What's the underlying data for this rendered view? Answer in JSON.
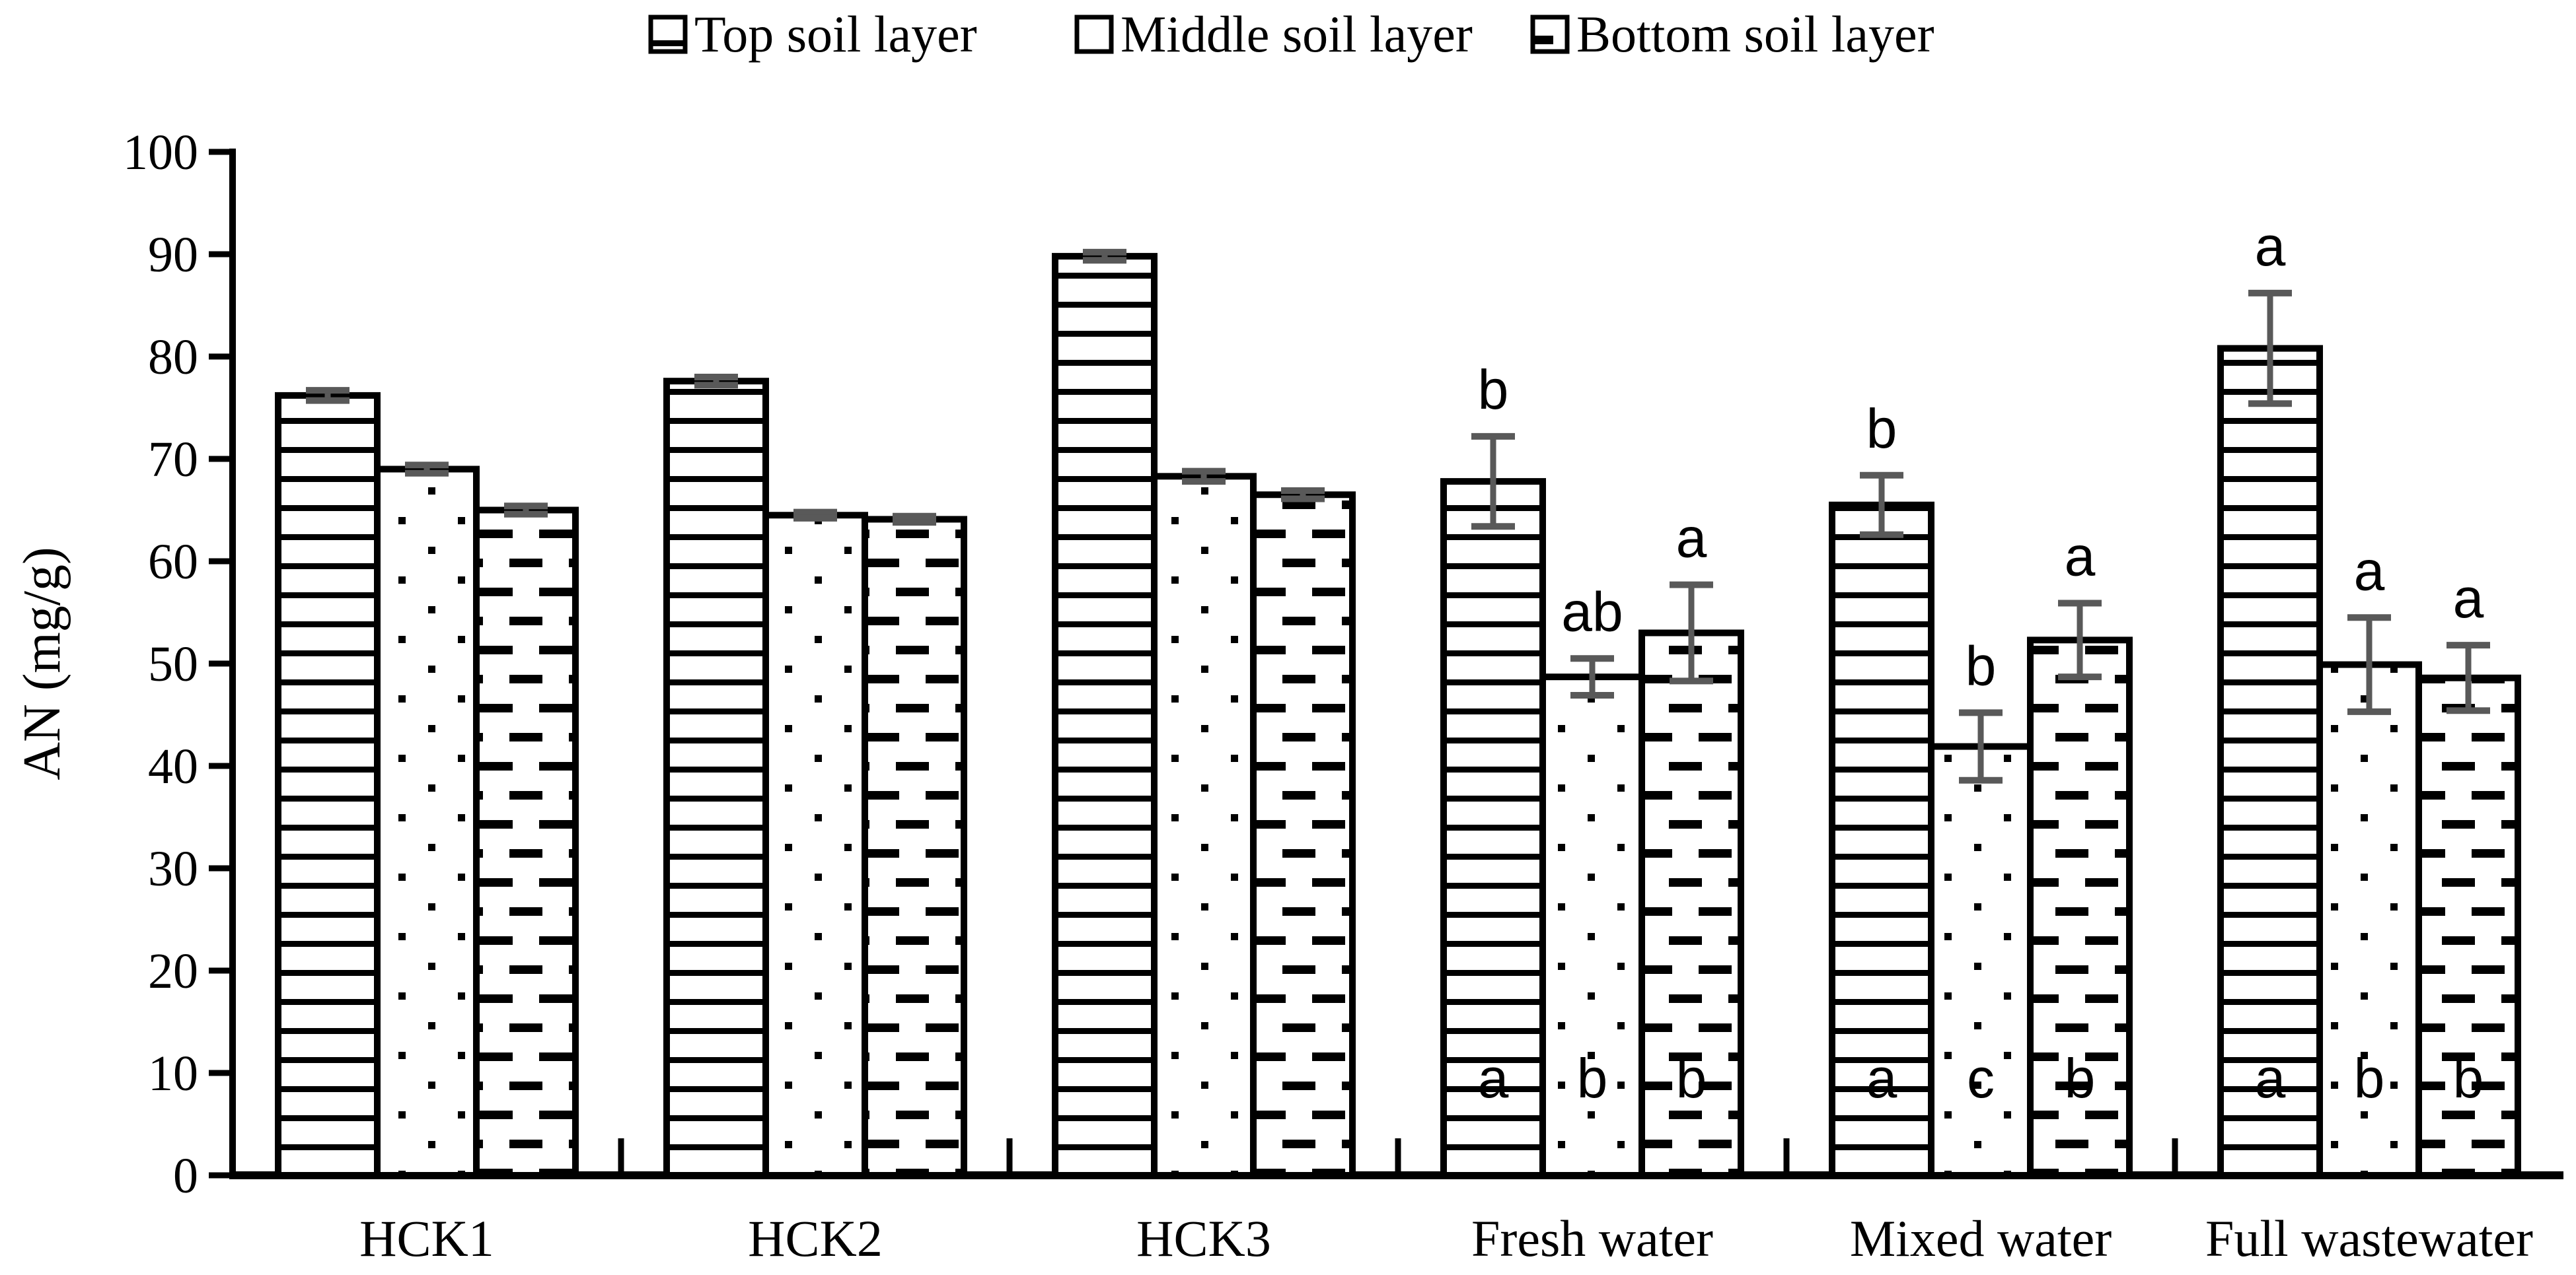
{
  "figure": {
    "background": "#ffffff"
  },
  "colors": {
    "bar_fill": "#ffffff",
    "bar_border": "#000000",
    "error_bar": "#595959",
    "axis": "#000000",
    "text": "#000000"
  },
  "legend": {
    "items": [
      {
        "label": "Top soil layer",
        "pattern": "hlines"
      },
      {
        "label": "Middle soil layer",
        "pattern": "dots"
      },
      {
        "label": "Bottom soil layer",
        "pattern": "dashes"
      }
    ]
  },
  "y_axis": {
    "title": "AN (mg/g)",
    "min": 0,
    "max": 100,
    "step": 10,
    "tick_labels": [
      "0",
      "10",
      "20",
      "30",
      "40",
      "50",
      "60",
      "70",
      "80",
      "90",
      "100"
    ]
  },
  "x_axis": {
    "categories": [
      "HCK1",
      "HCK2",
      "HCK3",
      "Fresh water",
      "Mixed water",
      "Full wastewater"
    ]
  },
  "chart_data": {
    "type": "bar",
    "title": "",
    "xlabel": "",
    "ylabel": "AN (mg/g)",
    "ylim": [
      0,
      100
    ],
    "grid": false,
    "legend_position": "top",
    "categories": [
      "HCK1",
      "HCK2",
      "HCK3",
      "Fresh water",
      "Mixed water",
      "Full wastewater"
    ],
    "series": [
      {
        "name": "Top soil layer",
        "pattern": "hlines",
        "values": [
          76.2,
          77.6,
          89.8,
          67.8,
          65.5,
          80.8
        ],
        "errors": [
          0.5,
          0.4,
          0.4,
          4.4,
          2.9,
          5.4
        ],
        "letters_above": [
          "",
          "",
          "",
          "b",
          "b",
          "a"
        ],
        "letters_inside": [
          "",
          "",
          "",
          "a",
          "a",
          "a"
        ]
      },
      {
        "name": "Middle soil layer",
        "pattern": "dots",
        "values": [
          69.0,
          64.5,
          68.3,
          48.7,
          41.9,
          49.9
        ],
        "errors": [
          0.4,
          0.3,
          0.5,
          1.8,
          3.3,
          4.6
        ],
        "letters_above": [
          "",
          "",
          "",
          "ab",
          "b",
          "a"
        ],
        "letters_inside": [
          "",
          "",
          "",
          "b",
          "c",
          "b"
        ]
      },
      {
        "name": "Bottom soil layer",
        "pattern": "dashes",
        "values": [
          65.0,
          64.1,
          66.5,
          53.0,
          52.3,
          48.6
        ],
        "errors": [
          0.4,
          0.3,
          0.4,
          4.7,
          3.6,
          3.2
        ],
        "letters_above": [
          "",
          "",
          "",
          "a",
          "a",
          "a"
        ],
        "letters_inside": [
          "",
          "",
          "",
          "b",
          "b",
          "b"
        ]
      }
    ]
  }
}
